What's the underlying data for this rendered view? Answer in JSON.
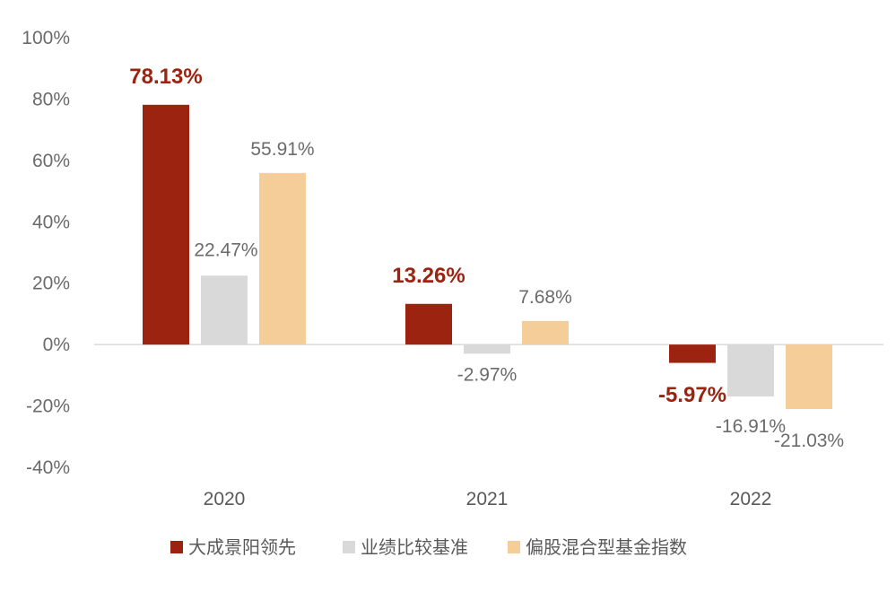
{
  "chart_data": {
    "type": "bar",
    "categories": [
      "2020",
      "2021",
      "2022"
    ],
    "series": [
      {
        "name": "大成景阳领先",
        "values": [
          78.13,
          13.26,
          -5.97
        ],
        "labels": [
          "78.13%",
          "13.26%",
          "-5.97%"
        ],
        "color": "#9c2310",
        "label_color": "#9c2310",
        "label_bold": true
      },
      {
        "name": "业绩比较基准",
        "values": [
          22.47,
          -2.97,
          -16.91
        ],
        "labels": [
          "22.47%",
          "-2.97%",
          "-16.91%"
        ],
        "color": "#d9d9d9",
        "label_color": "#6b6b6b",
        "label_bold": false
      },
      {
        "name": "偏股混合型基金指数",
        "values": [
          55.91,
          7.68,
          -21.03
        ],
        "labels": [
          "55.91%",
          "7.68%",
          "-21.03%"
        ],
        "color": "#f5cd98",
        "label_color": "#6b6b6b",
        "label_bold": false
      }
    ],
    "yticks": [
      "100%",
      "80%",
      "60%",
      "40%",
      "20%",
      "0%",
      "-20%",
      "-40%"
    ],
    "ylim": [
      -40,
      100
    ],
    "grid": false,
    "legend_position": "bottom",
    "title": "",
    "xlabel": "",
    "ylabel": ""
  }
}
